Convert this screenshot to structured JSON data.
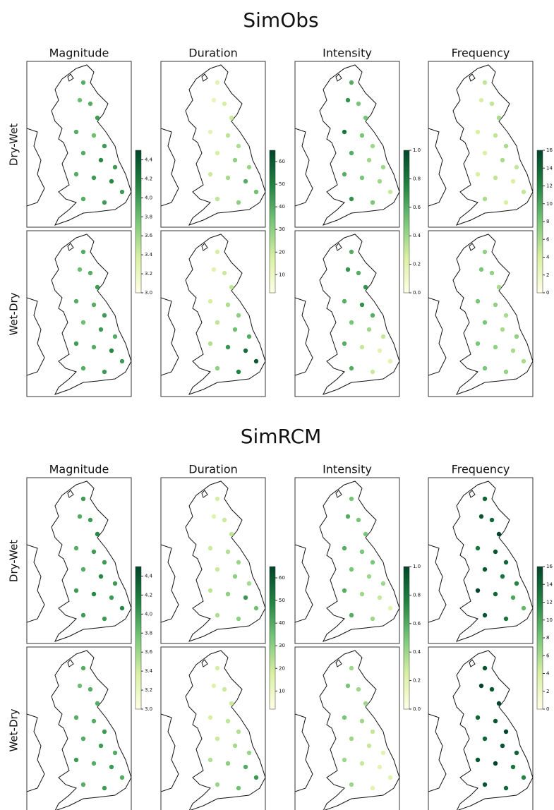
{
  "columns": [
    {
      "title": "Magnitude",
      "clim": [
        3.0,
        4.5
      ],
      "ticks": [
        {
          "value": 3,
          "label": "3.0"
        },
        3.2,
        3.4,
        3.6,
        3.8,
        {
          "value": 4,
          "label": "4.0"
        },
        4.2,
        4.4
      ]
    },
    {
      "title": "Duration",
      "clim": [
        2,
        65
      ],
      "ticks": [
        10,
        20,
        30,
        40,
        50,
        60
      ]
    },
    {
      "title": "Intensity",
      "clim": [
        0,
        1
      ],
      "ticks": [
        {
          "value": 0,
          "label": "0.0"
        },
        0.2,
        0.4,
        0.6,
        0.8,
        {
          "value": 1,
          "label": "1.0"
        }
      ]
    },
    {
      "title": "Frequency",
      "clim": [
        0,
        16
      ],
      "ticks": [
        0,
        2,
        4,
        6,
        8,
        10,
        12,
        14,
        16
      ]
    }
  ],
  "row_labels": [
    "Dry-Wet",
    "Wet-Dry"
  ],
  "sections": [
    {
      "title": "SimObs",
      "panels": [
        [
          [
            3.9,
            3.8,
            3.9,
            4.0,
            3.9,
            3.8,
            4.0,
            3.9,
            4.1,
            4.0,
            3.9,
            4.0,
            4.1,
            4.0,
            3.9,
            4.0
          ],
          [
            15,
            12,
            18,
            20,
            14,
            22,
            25,
            18,
            30,
            28,
            20,
            26,
            40,
            35,
            22,
            30
          ],
          [
            0.6,
            0.7,
            0.5,
            0.5,
            0.8,
            0.5,
            0.4,
            0.6,
            0.4,
            0.4,
            0.6,
            0.5,
            0.4,
            0.3,
            0.7,
            0.5
          ],
          [
            5,
            4,
            5,
            6,
            4,
            5,
            6,
            4,
            6,
            5,
            4,
            5,
            4,
            5,
            6,
            4
          ]
        ],
        [
          [
            3.9,
            3.8,
            3.9,
            4.0,
            3.9,
            3.9,
            4.0,
            3.8,
            4.0,
            3.9,
            4.0,
            3.9,
            4.1,
            4.0,
            3.9,
            4.0
          ],
          [
            18,
            15,
            20,
            22,
            18,
            25,
            30,
            22,
            35,
            40,
            24,
            45,
            55,
            60,
            30,
            50
          ],
          [
            0.6,
            0.7,
            0.6,
            0.7,
            0.6,
            0.7,
            0.6,
            0.5,
            0.4,
            0.3,
            0.6,
            0.3,
            0.2,
            0.2,
            0.6,
            0.3
          ],
          [
            7,
            8,
            7,
            6,
            8,
            7,
            6,
            8,
            6,
            7,
            8,
            7,
            6,
            6,
            8,
            7
          ]
        ]
      ]
    },
    {
      "title": "SimRCM",
      "panels": [
        [
          [
            4.0,
            3.9,
            4.0,
            4.1,
            3.9,
            4.0,
            4.0,
            3.9,
            4.1,
            4.0,
            4.0,
            4.1,
            4.0,
            4.1,
            4.0,
            4.0
          ],
          [
            18,
            15,
            20,
            22,
            20,
            24,
            28,
            20,
            30,
            26,
            22,
            30,
            45,
            35,
            25,
            30
          ],
          [
            0.5,
            0.6,
            0.5,
            0.5,
            0.6,
            0.5,
            0.5,
            0.5,
            0.4,
            0.4,
            0.6,
            0.4,
            0.3,
            0.2,
            0.6,
            0.4
          ],
          [
            14,
            15,
            14,
            16,
            13,
            15,
            14,
            15,
            13,
            12,
            16,
            14,
            10,
            9,
            15,
            13
          ]
        ],
        [
          [
            3.9,
            3.8,
            3.9,
            3.9,
            3.9,
            3.9,
            4.0,
            3.9,
            4.0,
            3.9,
            4.0,
            3.9,
            4.0,
            3.9,
            3.9,
            4.0
          ],
          [
            18,
            16,
            20,
            20,
            18,
            22,
            24,
            20,
            26,
            28,
            24,
            30,
            40,
            45,
            28,
            35
          ],
          [
            0.4,
            0.5,
            0.4,
            0.4,
            0.5,
            0.4,
            0.3,
            0.4,
            0.3,
            0.2,
            0.4,
            0.3,
            0.2,
            0.2,
            0.4,
            0.2
          ],
          [
            15,
            16,
            15,
            16,
            14,
            15,
            16,
            14,
            15,
            14,
            15,
            16,
            13,
            12,
            15,
            14
          ]
        ]
      ]
    }
  ]
}
